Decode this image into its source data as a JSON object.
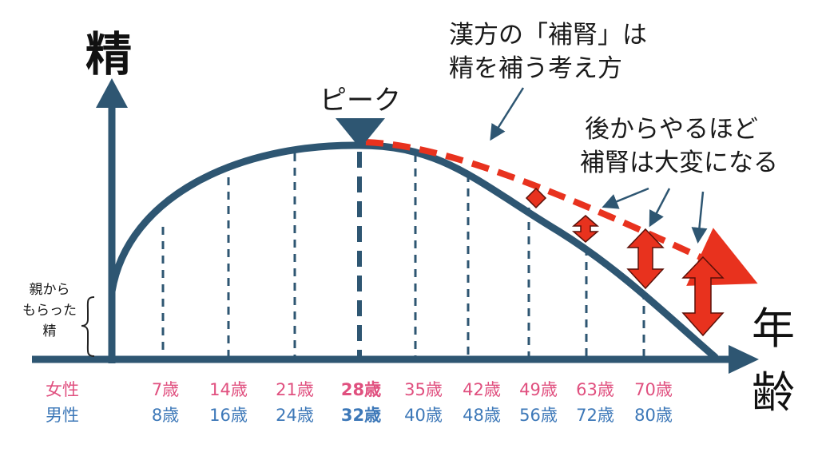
{
  "labels": {
    "y_axis": "精",
    "x_axis_line1": "年",
    "x_axis_line2": "齢",
    "peak": "ピーク",
    "inherited_line1": "親から",
    "inherited_line2": "もらった",
    "inherited_line3": "精",
    "kampo_line1": "漢方の「補腎」は",
    "kampo_line2": "精を補う考え方",
    "later_line1": "後からやるほど",
    "later_line2": "補腎は大変になる",
    "female": "女性",
    "male": "男性"
  },
  "ages": {
    "female": [
      "7歳",
      "14歳",
      "21歳",
      "28歳",
      "35歳",
      "42歳",
      "49歳",
      "63歳",
      "70歳"
    ],
    "male": [
      "8歳",
      "16歳",
      "24歳",
      "32歳",
      "40歳",
      "48歳",
      "56歳",
      "72歳",
      "80歳"
    ]
  },
  "colors": {
    "navy": "#2e5672",
    "red": "#e8321e",
    "pink": "#e0507f",
    "blue": "#3d78b8",
    "peak_bold": "#e0507f"
  }
}
